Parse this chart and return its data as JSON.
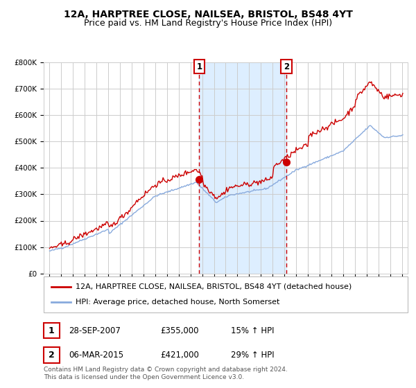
{
  "title": "12A, HARPTREE CLOSE, NAILSEA, BRISTOL, BS48 4YT",
  "subtitle": "Price paid vs. HM Land Registry's House Price Index (HPI)",
  "ylim": [
    0,
    800000
  ],
  "yticks": [
    0,
    100000,
    200000,
    300000,
    400000,
    500000,
    600000,
    700000,
    800000
  ],
  "ytick_labels": [
    "£0",
    "£100K",
    "£200K",
    "£300K",
    "£400K",
    "£500K",
    "£600K",
    "£700K",
    "£800K"
  ],
  "xlim_start": 1994.5,
  "xlim_end": 2025.5,
  "xticks": [
    1995,
    1996,
    1997,
    1998,
    1999,
    2000,
    2001,
    2002,
    2003,
    2004,
    2005,
    2006,
    2007,
    2008,
    2009,
    2010,
    2011,
    2012,
    2013,
    2014,
    2015,
    2016,
    2017,
    2018,
    2019,
    2020,
    2021,
    2022,
    2023,
    2024,
    2025
  ],
  "background_color": "#ffffff",
  "plot_bg_color": "#ffffff",
  "grid_color": "#cccccc",
  "shade_color": "#ddeeff",
  "marker1_date": 2007.75,
  "marker1_value": 355000,
  "marker2_date": 2015.17,
  "marker2_value": 421000,
  "marker_color": "#cc0000",
  "line1_color": "#cc0000",
  "line2_color": "#88aadd",
  "legend_label1": "12A, HARPTREE CLOSE, NAILSEA, BRISTOL, BS48 4YT (detached house)",
  "legend_label2": "HPI: Average price, detached house, North Somerset",
  "table_row1": [
    "1",
    "28-SEP-2007",
    "£355,000",
    "15% ↑ HPI"
  ],
  "table_row2": [
    "2",
    "06-MAR-2015",
    "£421,000",
    "29% ↑ HPI"
  ],
  "footer": "Contains HM Land Registry data © Crown copyright and database right 2024.\nThis data is licensed under the Open Government Licence v3.0.",
  "title_fontsize": 10,
  "subtitle_fontsize": 9,
  "tick_fontsize": 7.5,
  "legend_fontsize": 8,
  "table_fontsize": 8.5,
  "footer_fontsize": 6.5
}
